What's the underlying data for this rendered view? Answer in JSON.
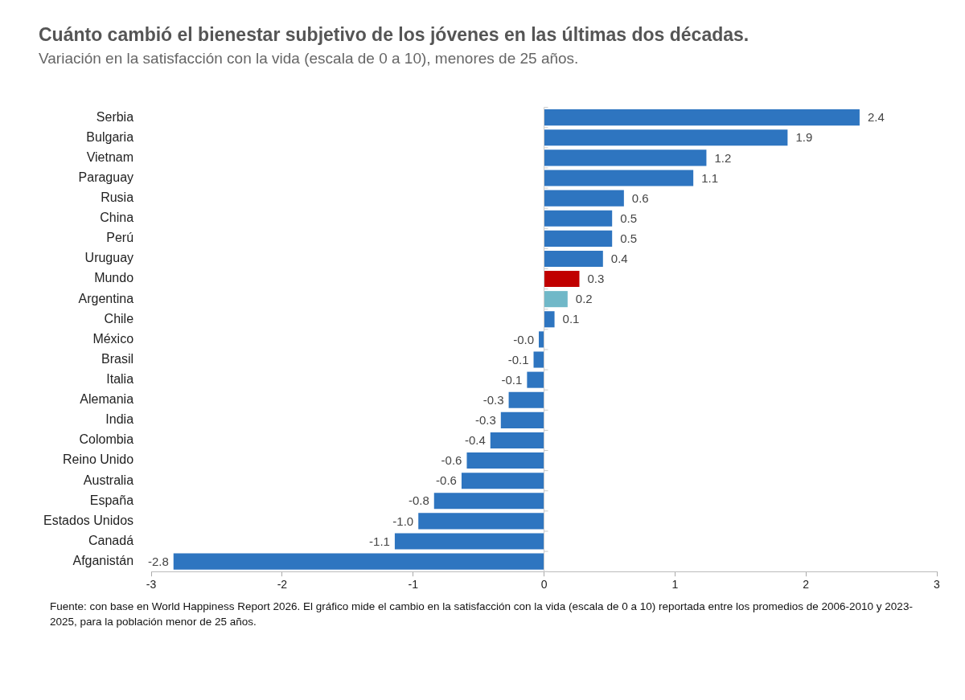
{
  "chart_data": {
    "type": "bar",
    "orientation": "horizontal",
    "title": "Cuánto cambió el bienestar subjetivo de los jóvenes en las últimas dos décadas.",
    "subtitle": "Variación en la satisfacción con la vida (escala de 0 a 10), menores de 25 años.",
    "categories": [
      "Serbia",
      "Bulgaria",
      "Vietnam",
      "Paraguay",
      "Rusia",
      "China",
      "Perú",
      "Uruguay",
      "Mundo",
      "Argentina",
      "Chile",
      "México",
      "Brasil",
      "Italia",
      "Alemania",
      "India",
      "Colombia",
      "Reino Unido",
      "Australia",
      "España",
      "Estados Unidos",
      "Canadá",
      "Afganistán"
    ],
    "values": [
      2.41,
      1.86,
      1.24,
      1.14,
      0.61,
      0.52,
      0.52,
      0.45,
      0.27,
      0.18,
      0.08,
      -0.04,
      -0.08,
      -0.13,
      -0.27,
      -0.33,
      -0.41,
      -0.59,
      -0.63,
      -0.84,
      -0.96,
      -1.14,
      -2.83
    ],
    "value_labels": [
      "2.4",
      "1.9",
      "1.2",
      "1.1",
      "0.6",
      "0.5",
      "0.5",
      "0.4",
      "0.3",
      "0.2",
      "0.1",
      "-0.0",
      "-0.1",
      "-0.1",
      "-0.3",
      "-0.3",
      "-0.4",
      "-0.6",
      "-0.6",
      "-0.8",
      "-1.0",
      "-1.1",
      "-2.8"
    ],
    "colors": [
      "#2e75c0",
      "#2e75c0",
      "#2e75c0",
      "#2e75c0",
      "#2e75c0",
      "#2e75c0",
      "#2e75c0",
      "#2e75c0",
      "#c00000",
      "#70b8c8",
      "#2e75c0",
      "#2e75c0",
      "#2e75c0",
      "#2e75c0",
      "#2e75c0",
      "#2e75c0",
      "#2e75c0",
      "#2e75c0",
      "#2e75c0",
      "#2e75c0",
      "#2e75c0",
      "#2e75c0",
      "#2e75c0"
    ],
    "ref_lines": [
      {
        "axis": "x",
        "value": 0,
        "color": "#cccccc"
      }
    ],
    "xlim": [
      -3,
      3
    ],
    "xticks": [
      -3,
      -2,
      -1,
      0,
      1,
      2,
      3
    ],
    "grid": false,
    "legend": false,
    "annotations": [
      "Fuente: con base en World Happiness Report 2026. El gráfico mide el cambio en la satisfacción con la vida (escala de 0 a 10) reportada entre los promedios de 2006-2010 y 2023-2025, para la población menor de 25 años."
    ]
  }
}
